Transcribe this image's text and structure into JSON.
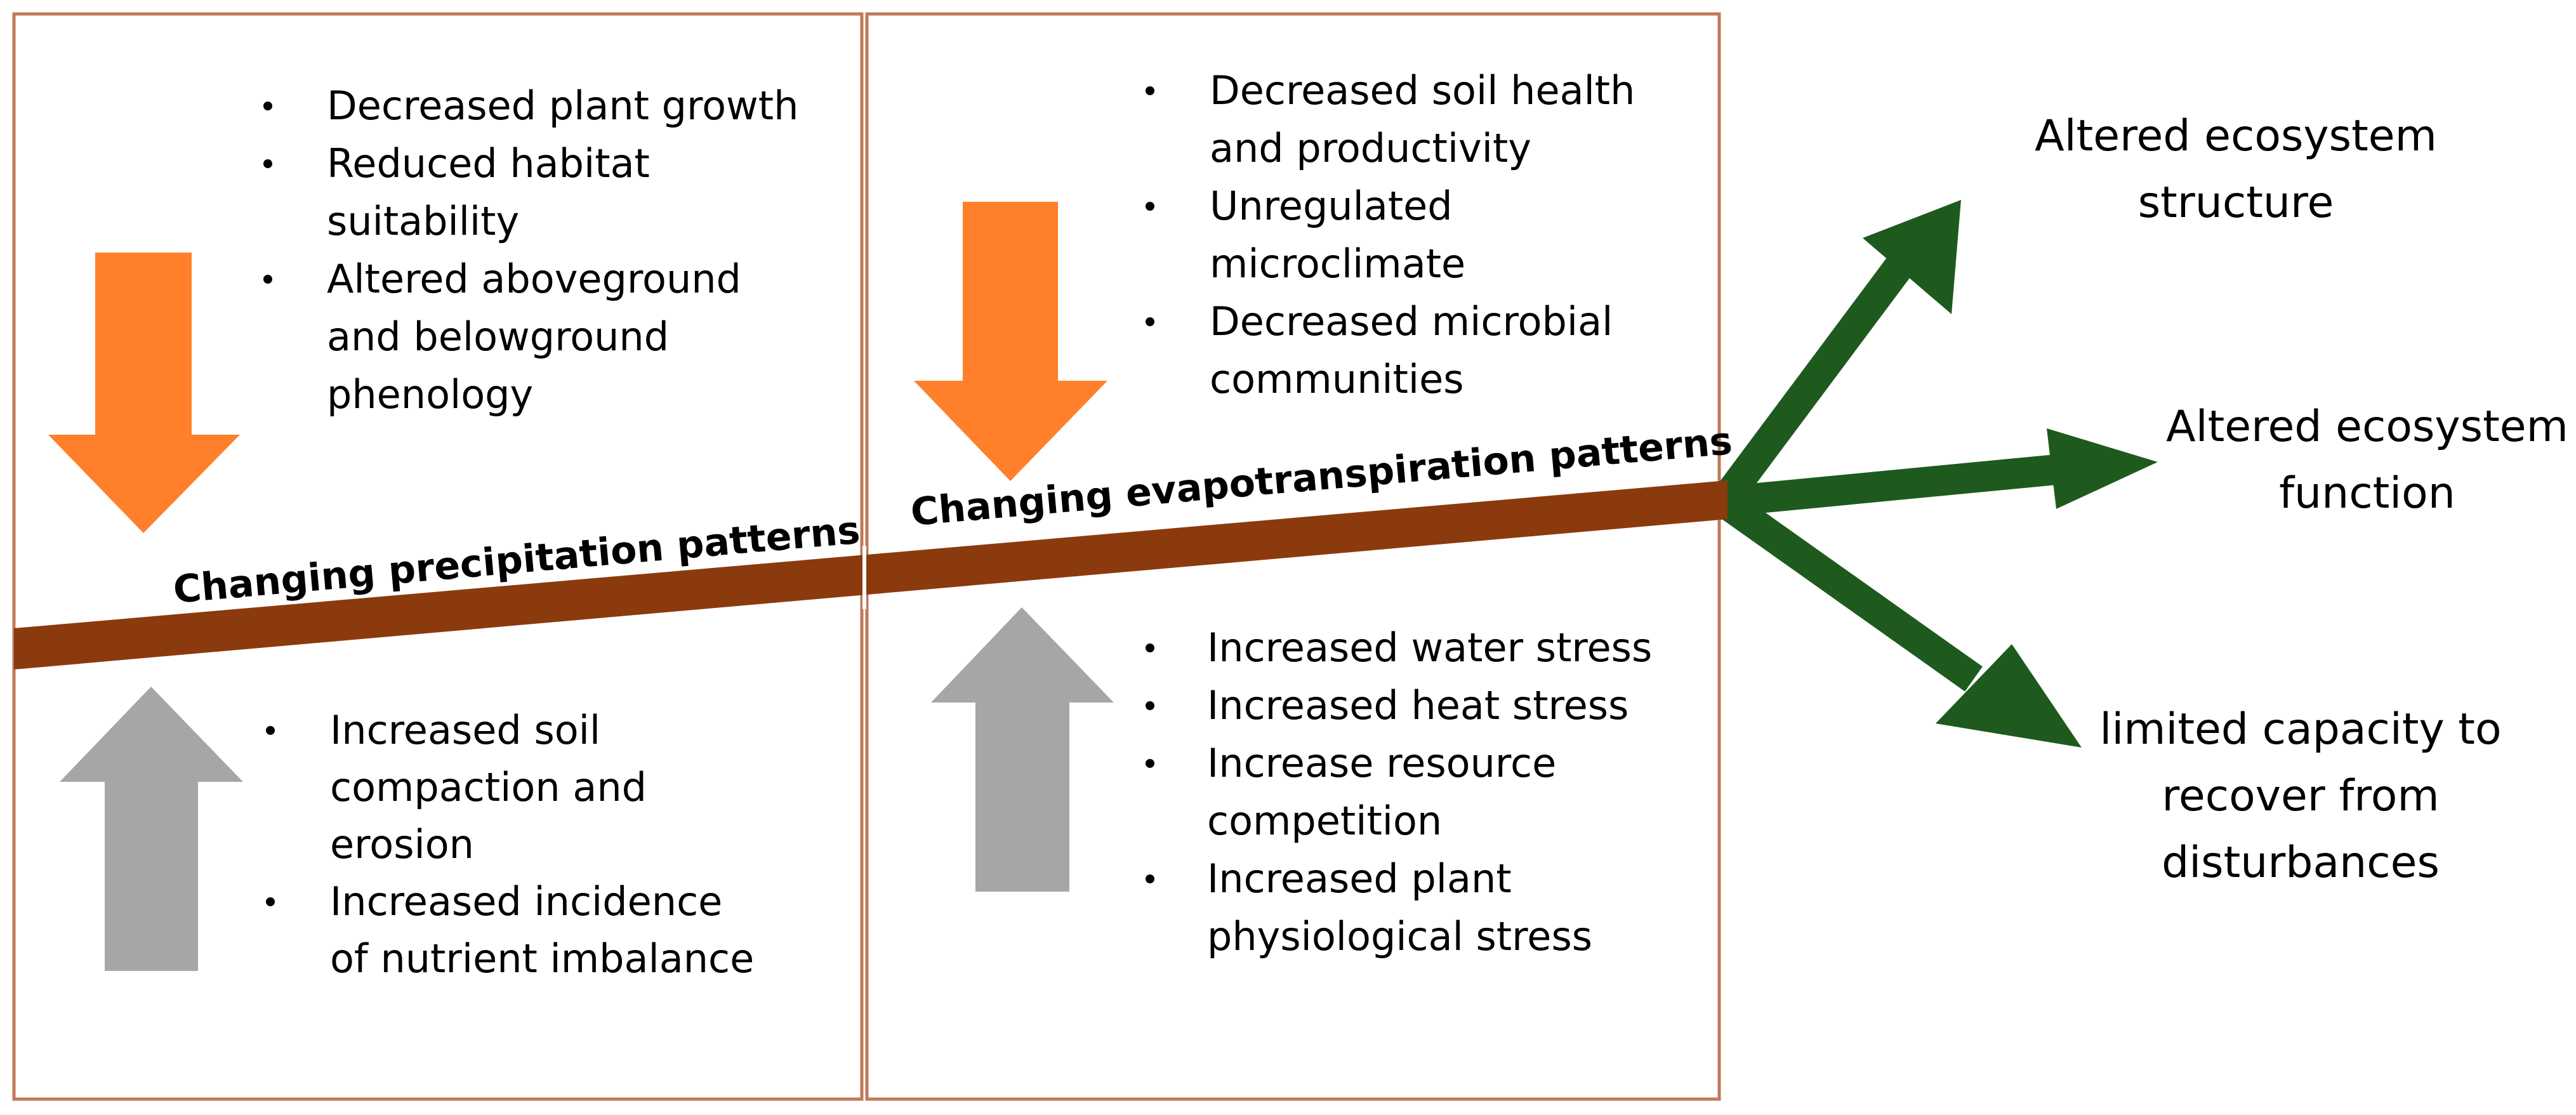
{
  "colors": {
    "panel_border": "#c0785a",
    "trend_bar": "#8b3a0e",
    "decrease_arrow": "#ff7f2a",
    "increase_arrow": "#a6a6a6",
    "outcome_arrow": "#1e5a1e"
  },
  "panels": [
    {
      "axis_label": "Changing precipitation patterns",
      "decrease_effects": [
        [
          "Decreased plant growth"
        ],
        [
          "Reduced habitat",
          "suitability"
        ],
        [
          "Altered aboveground",
          "and belowground",
          "phenology"
        ]
      ],
      "increase_effects": [
        [
          "Increased soil",
          "compaction and",
          "erosion"
        ],
        [
          "Increased incidence",
          "of nutrient imbalance"
        ]
      ]
    },
    {
      "axis_label": "Changing evapotranspiration patterns",
      "decrease_effects": [
        [
          "Decreased soil health",
          "and productivity"
        ],
        [
          "Unregulated",
          "microclimate"
        ],
        [
          "Decreased microbial",
          "communities"
        ]
      ],
      "increase_effects": [
        [
          "Increased water stress"
        ],
        [
          "Increased heat stress"
        ],
        [
          "Increase resource",
          "competition"
        ],
        [
          "Increased plant",
          "physiological stress"
        ]
      ]
    }
  ],
  "outcomes": [
    {
      "lines": [
        "Altered ecosystem",
        "structure"
      ]
    },
    {
      "lines": [
        "Altered ecosystem",
        "function"
      ]
    },
    {
      "lines": [
        "limited capacity to",
        "recover from",
        "disturbances"
      ]
    }
  ]
}
